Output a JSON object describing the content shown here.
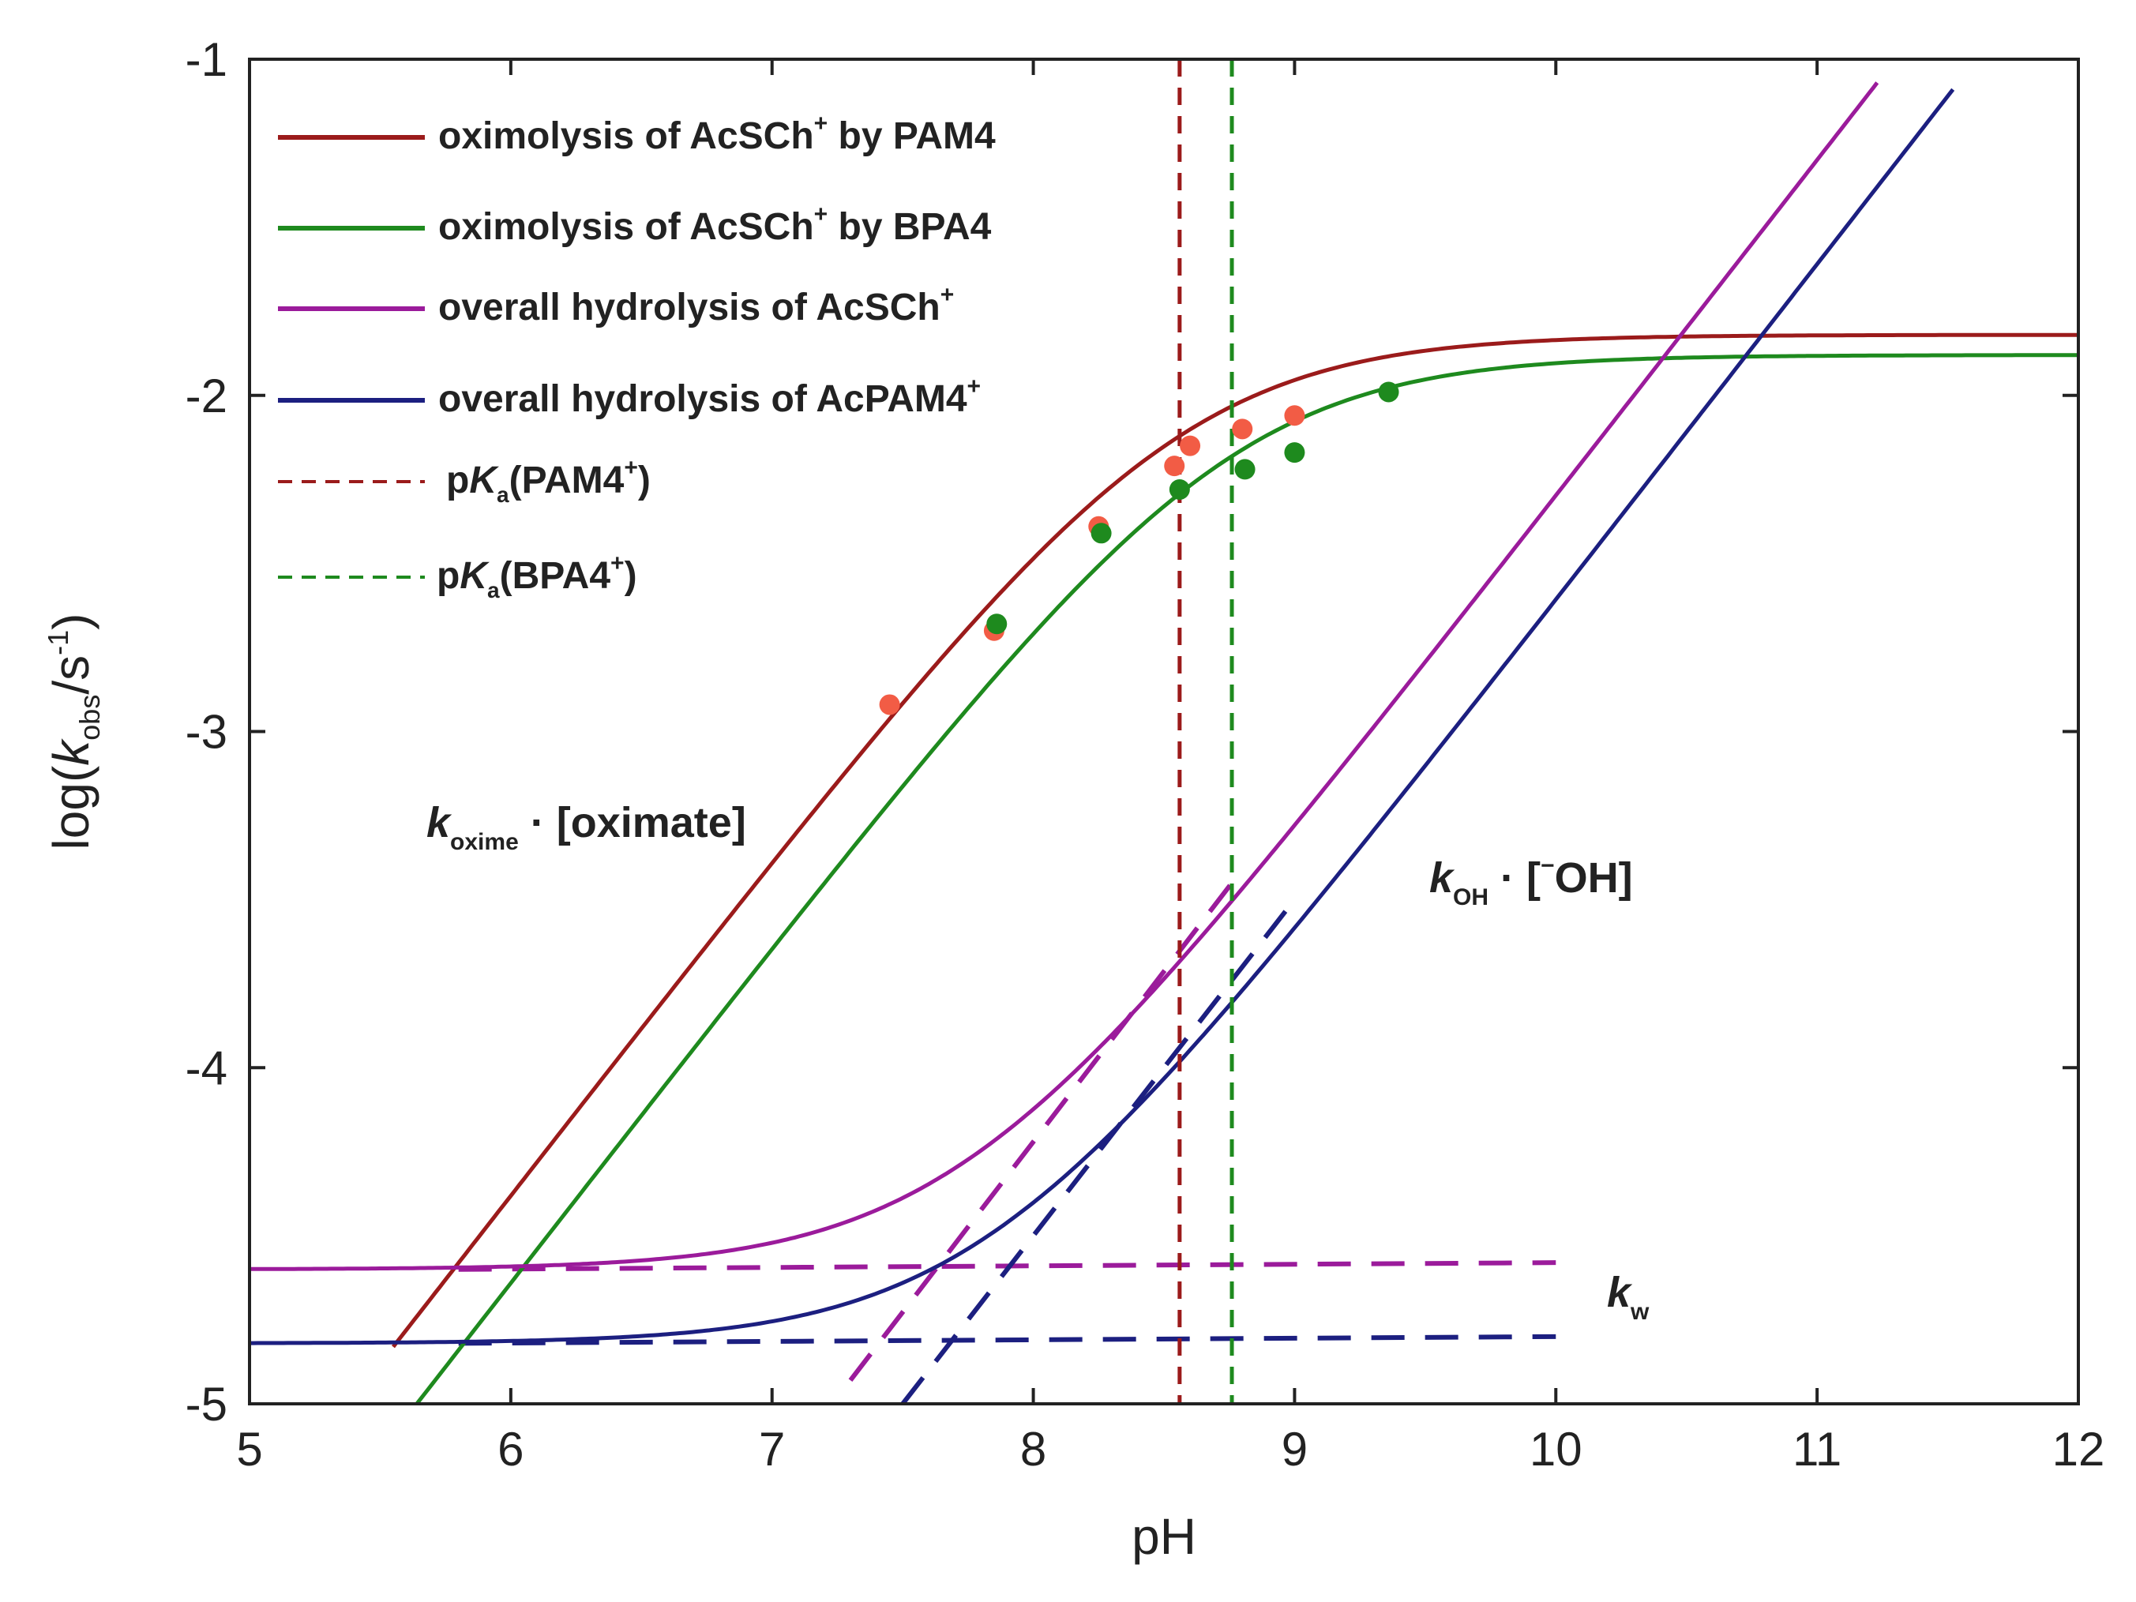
{
  "chart_data": {
    "type": "line",
    "xlabel": "pH",
    "ylabel": "log(k_obs / s^-1)",
    "ylabel_parts": {
      "pre": "log(",
      "k": "k",
      "sub": "obs",
      "mid": "/s",
      "sup": "-1",
      "post": ")"
    },
    "xlim": [
      5,
      12
    ],
    "ylim": [
      -5,
      -1
    ],
    "x_ticks": [
      5,
      6,
      7,
      8,
      9,
      10,
      11,
      12
    ],
    "y_ticks": [
      -5,
      -4,
      -3,
      -2,
      -1
    ],
    "y_tick_labels": [
      "-5",
      "-4",
      "-3",
      "-2",
      "-1"
    ],
    "grid": false,
    "legend_position": "top-left",
    "series": [
      {
        "name": "oximolysis of AcSCh+ by PAM4",
        "legend_label": "oximolysis of AcSCh",
        "legend_sup": "+",
        "legend_tail": " by PAM4",
        "color": "#9b1b1b",
        "style": "solid",
        "kind": "oxime",
        "logKmax": -1.82,
        "pKa": 8.56,
        "x_range": [
          5.55,
          12
        ]
      },
      {
        "name": "oximolysis of AcSCh+ by BPA4",
        "legend_label": "oximolysis of AcSCh",
        "legend_sup": "+",
        "legend_tail": " by BPA4",
        "color": "#1e8a1e",
        "style": "solid",
        "kind": "oxime",
        "logKmax": -1.88,
        "pKa": 8.76,
        "x_range": [
          5.6,
          12
        ]
      },
      {
        "name": "overall hydrolysis of AcSCh+",
        "legend_label": "overall hydrolysis of AcSCh",
        "legend_sup": "+",
        "legend_tail": "",
        "color": "#9b1b9b",
        "style": "solid",
        "kind": "hydrolysis",
        "log_kw": -4.6,
        "log_kOH_intercept": -3.8,
        "x_range": [
          5,
          11.23
        ]
      },
      {
        "name": "overall hydrolysis of AcPAM4+",
        "legend_label": "overall hydrolysis of AcPAM4",
        "legend_sup": "+",
        "legend_tail": "",
        "color": "#1c1f80",
        "style": "solid",
        "kind": "hydrolysis",
        "log_kw": -4.82,
        "log_kOH_intercept": -4.11,
        "x_range": [
          5,
          11.52
        ]
      },
      {
        "name": "pKa(PAM4+)",
        "legend_label": "pK",
        "legend_sub": "a",
        "legend_tail": "(PAM4",
        "legend_sup": "+",
        "legend_end": ")",
        "color": "#9b1b1b",
        "style": "dashed",
        "kind": "vline",
        "x": 8.56
      },
      {
        "name": "pKa(BPA4+)",
        "legend_label": "pK",
        "legend_sub": "a",
        "legend_tail": "(BPA4",
        "legend_sup": "+",
        "legend_end": ")",
        "color": "#1e8a1e",
        "style": "dashed",
        "kind": "vline",
        "x": 8.76
      }
    ],
    "asymptotes": [
      {
        "name": "kw AcSCh+",
        "color": "#9b1b9b",
        "points": [
          [
            5.8,
            -4.6
          ],
          [
            10.0,
            -4.58
          ]
        ]
      },
      {
        "name": "kw AcPAM4+",
        "color": "#1c1f80",
        "points": [
          [
            5.8,
            -4.82
          ],
          [
            10.0,
            -4.8
          ]
        ]
      },
      {
        "name": "kOH AcSCh+",
        "color": "#9b1b9b",
        "points": [
          [
            7.3,
            -4.93
          ],
          [
            8.78,
            -3.43
          ]
        ]
      },
      {
        "name": "kOH AcPAM4+",
        "color": "#1c1f80",
        "points": [
          [
            7.5,
            -5.0
          ],
          [
            8.98,
            -3.52
          ]
        ]
      }
    ],
    "scatter": [
      {
        "name": "PAM4 data",
        "color": "#f25c45",
        "points": [
          [
            7.45,
            -2.92
          ],
          [
            7.85,
            -2.7
          ],
          [
            8.25,
            -2.39
          ],
          [
            8.54,
            -2.21
          ],
          [
            8.6,
            -2.15
          ],
          [
            8.8,
            -2.1
          ],
          [
            9.0,
            -2.06
          ]
        ]
      },
      {
        "name": "BPA4 data",
        "color": "#1e8a1e",
        "points": [
          [
            7.86,
            -2.68
          ],
          [
            8.26,
            -2.41
          ],
          [
            8.56,
            -2.28
          ],
          [
            8.81,
            -2.22
          ],
          [
            9.0,
            -2.17
          ],
          [
            9.36,
            -1.99
          ]
        ]
      }
    ],
    "annotations": [
      {
        "name": "k_oxime",
        "k": "k",
        "sub": "oxime",
        "text": "· [oximate]",
        "x": 5.7,
        "y": -3.3
      },
      {
        "name": "k_OH",
        "k": "k",
        "sub": "OH",
        "text": "· [",
        "sup": "−",
        "tail": "OH]",
        "x": 9.5,
        "y": -3.5
      },
      {
        "name": "k_w",
        "k": "k",
        "sub": "w",
        "x": 10.2,
        "y": -4.75
      }
    ]
  }
}
